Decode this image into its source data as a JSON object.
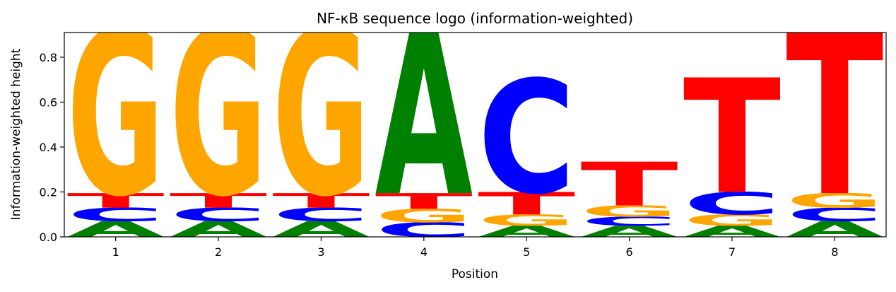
{
  "chart_data": {
    "type": "sequence-logo",
    "title": "NF-κB sequence logo (information-weighted)",
    "xlabel": "Position",
    "ylabel": "Information-weighted height",
    "ylim": [
      0,
      0.91
    ],
    "yticks": [
      "0.0",
      "0.2",
      "0.4",
      "0.6",
      "0.8"
    ],
    "ytick_values": [
      0,
      0.2,
      0.4,
      0.6,
      0.8
    ],
    "colors": {
      "A": "#008000",
      "C": "#0000ff",
      "G": "#ffa500",
      "T": "#ff0000"
    },
    "positions": [
      {
        "label": "1",
        "stack": [
          {
            "base": "A",
            "height": 0.07
          },
          {
            "base": "C",
            "height": 0.06
          },
          {
            "base": "T",
            "height": 0.065
          },
          {
            "base": "G",
            "height": 0.735
          }
        ]
      },
      {
        "label": "2",
        "stack": [
          {
            "base": "A",
            "height": 0.07
          },
          {
            "base": "C",
            "height": 0.06
          },
          {
            "base": "T",
            "height": 0.065
          },
          {
            "base": "G",
            "height": 0.735
          }
        ]
      },
      {
        "label": "3",
        "stack": [
          {
            "base": "A",
            "height": 0.07
          },
          {
            "base": "C",
            "height": 0.06
          },
          {
            "base": "T",
            "height": 0.065
          },
          {
            "base": "G",
            "height": 0.735
          }
        ]
      },
      {
        "label": "4",
        "stack": [
          {
            "base": "C",
            "height": 0.065
          },
          {
            "base": "G",
            "height": 0.06
          },
          {
            "base": "T",
            "height": 0.07
          },
          {
            "base": "A",
            "height": 0.725
          }
        ]
      },
      {
        "label": "5",
        "stack": [
          {
            "base": "A",
            "height": 0.05
          },
          {
            "base": "G",
            "height": 0.05
          },
          {
            "base": "T",
            "height": 0.1
          },
          {
            "base": "C",
            "height": 0.505
          }
        ]
      },
      {
        "label": "6",
        "stack": [
          {
            "base": "A",
            "height": 0.05
          },
          {
            "base": "C",
            "height": 0.04
          },
          {
            "base": "G",
            "height": 0.05
          },
          {
            "base": "T",
            "height": 0.195
          }
        ]
      },
      {
        "label": "7",
        "stack": [
          {
            "base": "A",
            "height": 0.05
          },
          {
            "base": "G",
            "height": 0.05
          },
          {
            "base": "C",
            "height": 0.1
          },
          {
            "base": "T",
            "height": 0.51
          }
        ]
      },
      {
        "label": "8",
        "stack": [
          {
            "base": "A",
            "height": 0.07
          },
          {
            "base": "C",
            "height": 0.06
          },
          {
            "base": "G",
            "height": 0.065
          },
          {
            "base": "T",
            "height": 0.735
          }
        ]
      }
    ]
  }
}
